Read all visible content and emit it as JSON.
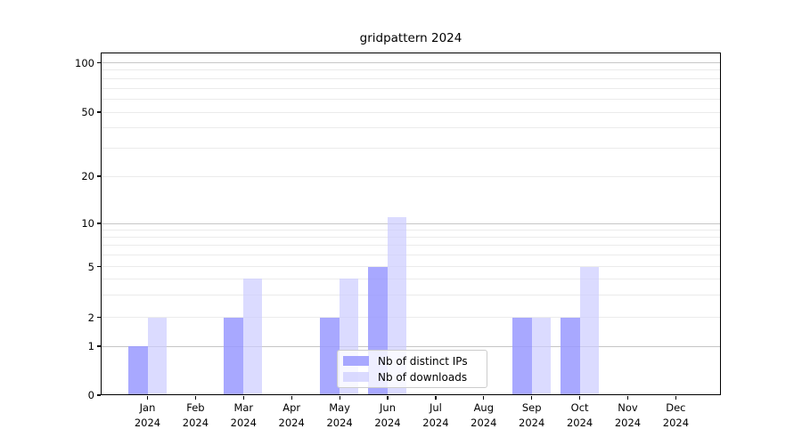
{
  "chart_data": {
    "type": "bar",
    "title": "gridpattern 2024",
    "year_label": "2024",
    "categories": [
      "Jan",
      "Feb",
      "Mar",
      "Apr",
      "May",
      "Jun",
      "Jul",
      "Aug",
      "Sep",
      "Oct",
      "Nov",
      "Dec"
    ],
    "series": [
      {
        "name": "Nb of distinct IPs",
        "color": "#9999ff",
        "fill_opacity": 0.85,
        "values": [
          1,
          0,
          2,
          0,
          2,
          5,
          0,
          0,
          2,
          2,
          0,
          0
        ]
      },
      {
        "name": "Nb of downloads",
        "color": "#ccccff",
        "fill_opacity": 0.7,
        "values": [
          2,
          0,
          4,
          0,
          4,
          11,
          0,
          0,
          2,
          5,
          0,
          0
        ]
      }
    ],
    "y_axis": {
      "scale": "log-with-zero-baseline",
      "tick_labels": [
        0,
        1,
        2,
        5,
        10,
        20,
        50,
        100
      ],
      "major_gridlines": [
        1,
        10,
        100
      ],
      "minor_gridlines": [
        2,
        3,
        4,
        5,
        6,
        7,
        8,
        9,
        20,
        30,
        40,
        50,
        60,
        70,
        80,
        90
      ],
      "ylim": [
        0,
        116
      ]
    },
    "grid": true,
    "grid_major_color": "#c6c6c6",
    "grid_minor_color": "#ebebeb",
    "legend_position": "lower-center"
  }
}
